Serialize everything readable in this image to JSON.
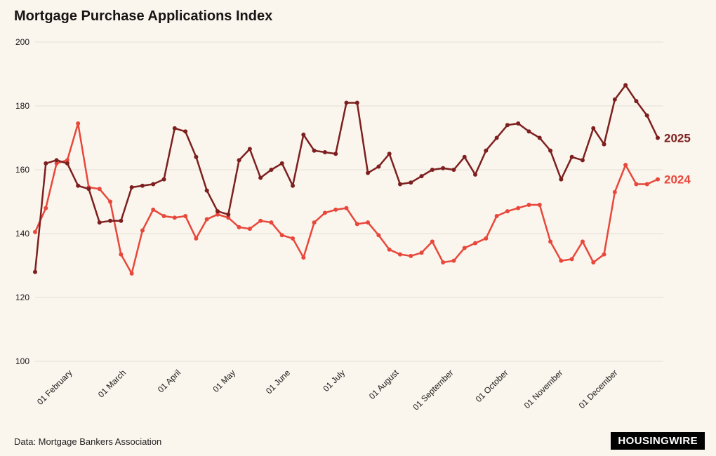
{
  "page": {
    "title": "Mortgage Purchase Applications Index",
    "source_note": "Data: Mortgage Bankers Association",
    "logo_text": "HOUSINGWIRE",
    "background_color": "#faf5ed"
  },
  "chart_data": {
    "type": "line",
    "title": "Mortgage Purchase Applications Index",
    "xlabel": "",
    "ylabel": "",
    "ylim": [
      100,
      200
    ],
    "yticks": [
      100,
      120,
      140,
      160,
      180,
      200
    ],
    "grid": true,
    "grid_color": "#e6e1d7",
    "axis_text_color": "#1a1a1a",
    "x_unit": "weekly observations, January through December",
    "legend_position": "end-of-line labels at right",
    "xticks": [
      {
        "label": "01 February",
        "index": 3.5
      },
      {
        "label": "01 March",
        "index": 8.5
      },
      {
        "label": "01 April",
        "index": 13.6
      },
      {
        "label": "01 May",
        "index": 18.7
      },
      {
        "label": "01 June",
        "index": 23.8
      },
      {
        "label": "01 July",
        "index": 28.9
      },
      {
        "label": "01 August",
        "index": 33.9
      },
      {
        "label": "01 September",
        "index": 39.0
      },
      {
        "label": "01 October",
        "index": 44.1
      },
      {
        "label": "01 November",
        "index": 49.2
      },
      {
        "label": "01 December",
        "index": 54.3
      }
    ],
    "series": [
      {
        "name": "2025",
        "color": "#7d1f1f",
        "values": [
          128,
          162,
          163,
          162,
          155,
          154,
          143.5,
          144,
          144,
          154.5,
          155,
          155.5,
          157,
          173,
          172,
          164,
          153.5,
          147,
          146,
          163,
          166.5,
          157.5,
          160,
          162,
          155,
          171,
          166,
          165.5,
          165,
          181,
          181,
          159,
          161,
          165,
          155.5,
          156,
          158,
          160,
          160.5,
          160,
          164,
          158.5,
          166,
          170,
          174,
          174.5,
          172,
          170,
          166,
          157,
          164,
          163,
          173,
          168,
          182,
          186.5,
          181.5,
          177,
          170
        ]
      },
      {
        "name": "2024",
        "color": "#e8473b",
        "values": [
          140.5,
          148,
          162,
          163,
          174.5,
          154.5,
          154,
          150,
          133.5,
          127.5,
          141,
          147.5,
          145.5,
          145,
          145.5,
          138.5,
          144.5,
          146,
          145,
          142,
          141.5,
          144,
          143.5,
          139.5,
          138.5,
          132.5,
          143.5,
          146.5,
          147.5,
          148,
          143,
          143.5,
          139.5,
          135,
          133.5,
          133,
          134,
          137.5,
          131,
          131.5,
          135.5,
          137,
          138.5,
          145.5,
          147,
          148,
          149,
          149,
          137.5,
          131.5,
          132,
          137.5,
          131,
          133.5,
          153,
          161.5,
          155.5,
          155.5,
          157
        ]
      }
    ]
  }
}
